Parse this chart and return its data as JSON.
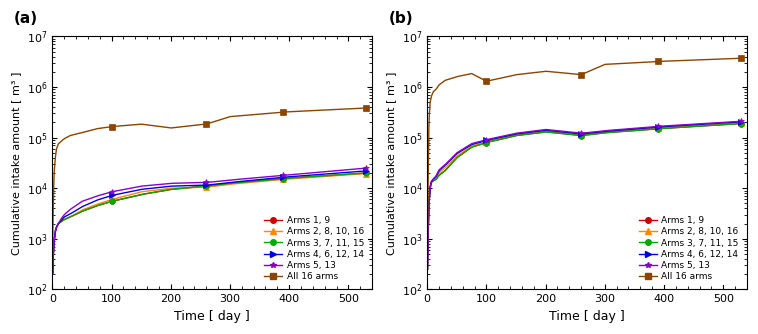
{
  "panel_a_label": "(a)",
  "panel_b_label": "(b)",
  "xlabel": "Time [ day ]",
  "ylabel": "Cumulative intake amount [ m³ ]",
  "ylim_a": [
    100.0,
    10000000.0
  ],
  "ylim_b": [
    100.0,
    10000000.0
  ],
  "xlim": [
    0,
    540
  ],
  "xticks": [
    0,
    100,
    200,
    300,
    400,
    500
  ],
  "legend_labels": [
    "Arms 1, 9",
    "Arms 2, 8, 10, 16",
    "Arms 3, 7, 11, 15",
    "Arms 4, 6, 12, 14",
    "Arms 5, 13",
    "All 16 arms"
  ],
  "colors": [
    "#cc0000",
    "#ff8800",
    "#00aa00",
    "#0000dd",
    "#8800cc",
    "#8b4500"
  ],
  "markers": [
    "o",
    "^",
    "o",
    ">",
    "*",
    "s"
  ],
  "background_color": "#ffffff",
  "series_a": {
    "time": [
      0.5,
      1,
      2,
      3,
      5,
      7,
      10,
      15,
      20,
      30,
      50,
      75,
      100,
      150,
      200,
      260,
      300,
      390,
      530
    ],
    "arms19": [
      200,
      350,
      600,
      900,
      1400,
      1700,
      2000,
      2200,
      2400,
      2700,
      3500,
      4500,
      5500,
      7500,
      9500,
      11000,
      12500,
      15500,
      20000
    ],
    "arms281016": [
      200,
      350,
      600,
      900,
      1400,
      1700,
      2000,
      2200,
      2400,
      2700,
      3700,
      4800,
      6000,
      8500,
      10000,
      10500,
      12000,
      15000,
      19500
    ],
    "arms371115": [
      200,
      350,
      600,
      900,
      1400,
      1700,
      2000,
      2200,
      2400,
      2700,
      3500,
      4500,
      5500,
      7500,
      9500,
      11000,
      12500,
      15500,
      20000
    ],
    "arms461214": [
      200,
      350,
      600,
      900,
      1400,
      1700,
      2000,
      2300,
      2700,
      3100,
      4300,
      5800,
      7200,
      9500,
      11000,
      11500,
      13000,
      16500,
      22000
    ],
    "arms513": [
      200,
      350,
      600,
      900,
      1400,
      1700,
      2000,
      2500,
      3000,
      3800,
      5500,
      7000,
      8500,
      11000,
      12500,
      13000,
      14500,
      18000,
      25000
    ],
    "all16": [
      600,
      2000,
      8000,
      20000,
      40000,
      60000,
      75000,
      85000,
      95000,
      110000,
      125000,
      150000,
      165000,
      185000,
      155000,
      185000,
      260000,
      320000,
      385000
    ]
  },
  "series_b": {
    "time": [
      0.5,
      1,
      2,
      3,
      5,
      7,
      10,
      15,
      20,
      30,
      50,
      75,
      100,
      150,
      200,
      260,
      300,
      390,
      530
    ],
    "arms19": [
      250,
      600,
      2000,
      5000,
      10000,
      13000,
      14000,
      15000,
      18000,
      22000,
      40000,
      65000,
      80000,
      110000,
      130000,
      110000,
      125000,
      150000,
      190000
    ],
    "arms281016": [
      250,
      600,
      2000,
      5000,
      10000,
      13000,
      14500,
      16000,
      20000,
      25000,
      43000,
      68000,
      83000,
      113000,
      135000,
      113000,
      128000,
      155000,
      195000
    ],
    "arms371115": [
      250,
      600,
      2000,
      5000,
      10000,
      13000,
      14000,
      15000,
      18000,
      22000,
      40000,
      65000,
      80000,
      110000,
      130000,
      110000,
      125000,
      150000,
      190000
    ],
    "arms461214": [
      250,
      600,
      2000,
      5000,
      10500,
      13500,
      15000,
      17000,
      22000,
      28000,
      48000,
      73000,
      88000,
      118000,
      140000,
      118000,
      133000,
      162000,
      205000
    ],
    "arms513": [
      250,
      600,
      2000,
      5000,
      10500,
      13500,
      15000,
      17500,
      23000,
      29000,
      50000,
      76000,
      91000,
      122000,
      145000,
      122000,
      137000,
      167000,
      210000
    ],
    "all16": [
      600,
      3000,
      30000,
      200000,
      500000,
      650000,
      800000,
      900000,
      1100000,
      1350000,
      1600000,
      1850000,
      1300000,
      1750000,
      2050000,
      1750000,
      2800000,
      3200000,
      3700000
    ]
  },
  "marker_times": [
    0,
    100,
    260,
    390,
    530
  ]
}
